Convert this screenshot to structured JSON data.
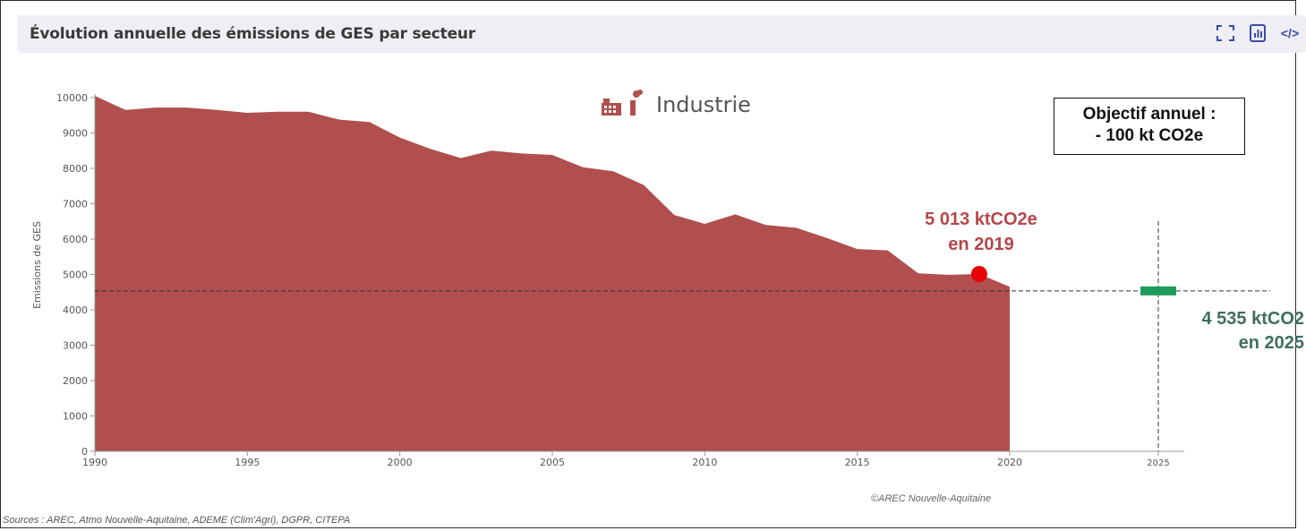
{
  "header": {
    "title": "Évolution annuelle des émissions de GES par secteur",
    "tools": [
      {
        "name": "fullscreen-icon",
        "glyph": "⛶"
      },
      {
        "name": "chart-export-icon",
        "glyph": "▤"
      },
      {
        "name": "embed-code-icon",
        "glyph": "</>"
      }
    ]
  },
  "chart_data": {
    "type": "area",
    "sector": "Industrie",
    "sector_icon": "factory-icon",
    "ylabel": "Emissions de GES",
    "ylim": [
      0,
      10000
    ],
    "yticks": [
      0,
      1000,
      2000,
      3000,
      4000,
      5000,
      6000,
      7000,
      8000,
      9000,
      10000
    ],
    "xticks": [
      1990,
      1995,
      2000,
      2005,
      2010,
      2015,
      2020,
      2025
    ],
    "x": [
      1990,
      1991,
      1992,
      1993,
      1994,
      1995,
      1996,
      1997,
      1998,
      1999,
      2000,
      2001,
      2002,
      2003,
      2004,
      2005,
      2006,
      2007,
      2008,
      2009,
      2010,
      2011,
      2012,
      2013,
      2014,
      2015,
      2016,
      2017,
      2018,
      2019,
      2020
    ],
    "values": [
      10050,
      9650,
      9720,
      9720,
      9650,
      9570,
      9600,
      9600,
      9380,
      9310,
      8870,
      8550,
      8290,
      8500,
      8420,
      8380,
      8030,
      7920,
      7530,
      6680,
      6430,
      6700,
      6400,
      6320,
      6030,
      5720,
      5680,
      5030,
      4990,
      5013,
      4650
    ],
    "fill_color": "#b04f4e",
    "highlight": {
      "x": 2019,
      "y": 5013,
      "color": "#e60000",
      "label_line1": "5 013 ktCO2e",
      "label_line2": "en 2019"
    },
    "target": {
      "x": 2025,
      "y": 4535,
      "color": "#1e9a5d",
      "label_line1": "4 535 ktCO2",
      "label_line2": "en 2025"
    },
    "objective": {
      "line1": "Objectif annuel :",
      "line2": "- 100 kt CO2e"
    }
  },
  "footer": {
    "copyright": "©AREC Nouvelle-Aquitaine",
    "sources": "Sources : AREC, Atmo Nouvelle-Aquitaine, ADEME (Clim'Agri), DGPR, CITEPA"
  }
}
